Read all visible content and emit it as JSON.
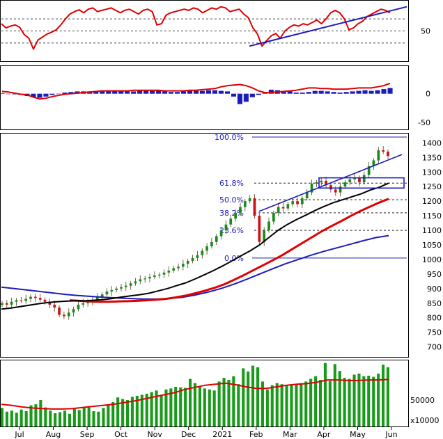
{
  "chart_data": [
    {
      "type": "line",
      "panel": "rsi",
      "yticks": [
        50
      ],
      "reference_levels": [
        30,
        50,
        70
      ],
      "series": [
        {
          "color": "#e00000",
          "values": [
            62,
            55,
            58,
            60,
            56,
            44,
            38,
            20,
            35,
            40,
            45,
            48,
            52,
            60,
            70,
            78,
            82,
            85,
            80,
            86,
            88,
            82,
            84,
            86,
            88,
            84,
            80,
            84,
            86,
            82,
            78,
            84,
            86,
            82,
            60,
            62,
            76,
            80,
            82,
            84,
            86,
            84,
            88,
            86,
            80,
            84,
            88,
            86,
            90,
            88,
            82,
            84,
            86,
            78,
            72,
            55,
            45,
            25,
            34,
            42,
            46,
            38,
            50,
            56,
            60,
            58,
            62,
            60,
            64,
            68,
            62,
            70,
            80,
            84,
            80,
            70,
            52,
            55,
            62,
            66,
            74,
            78,
            82,
            86,
            84,
            80
          ]
        },
        {
          "color": "#1c1cb8",
          "values": [
            25,
            90
          ]
        }
      ]
    },
    {
      "type": "bar",
      "panel": "macd",
      "yticks": [
        0,
        -50
      ],
      "series": [
        {
          "color": "#e00000",
          "values": [
            4,
            3,
            1,
            -1,
            -2,
            -6,
            -9,
            -8,
            -5,
            -3,
            -1,
            0,
            1,
            2,
            3,
            4,
            5,
            5,
            5,
            5,
            5,
            6,
            6,
            6,
            6,
            6,
            5,
            5,
            5,
            5,
            6,
            6,
            7,
            8,
            9,
            12,
            14,
            15,
            16,
            14,
            10,
            5,
            2,
            2,
            3,
            4,
            5,
            6,
            8,
            10,
            10,
            9,
            9,
            8,
            8,
            8,
            9,
            10,
            10,
            10,
            12,
            14,
            18
          ]
        },
        {
          "color": "#1c1cb8",
          "values": [
            1,
            0,
            -1,
            -2,
            -4,
            -6,
            -7,
            -5,
            -2,
            0,
            2,
            3,
            4,
            4,
            4,
            5,
            5,
            5,
            4,
            4,
            4,
            4,
            5,
            5,
            5,
            6,
            4,
            3,
            3,
            4,
            5,
            5,
            5,
            6,
            6,
            5,
            4,
            -5,
            -18,
            -14,
            -6,
            -2,
            3,
            7,
            6,
            5,
            4,
            2,
            2,
            3,
            5,
            5,
            4,
            3,
            2,
            3,
            4,
            5,
            6,
            5,
            6,
            8,
            10
          ]
        }
      ]
    },
    {
      "type": "candlestick",
      "panel": "price",
      "yticks": [
        700,
        750,
        800,
        850,
        900,
        950,
        1000,
        1050,
        1100,
        1150,
        1200,
        1250,
        1300,
        1350,
        1400
      ],
      "ylim": [
        680,
        1420
      ],
      "xlabels": [
        "Jul",
        "Aug",
        "Sep",
        "Oct",
        "Nov",
        "Dec",
        "2021",
        "Feb",
        "Mar",
        "Apr",
        "May",
        "Jun"
      ],
      "fibonacci": [
        {
          "label": "100.0%",
          "value": 1420
        },
        {
          "label": "61.8%",
          "value": 1262
        },
        {
          "label": "50.0%",
          "value": 1205
        },
        {
          "label": "38.2%",
          "value": 1160
        },
        {
          "label": "23.6%",
          "value": 1100
        },
        {
          "label": "0.0%",
          "value": 1005
        }
      ],
      "close": [
        850,
        845,
        855,
        860,
        858,
        865,
        872,
        868,
        862,
        855,
        845,
        835,
        810,
        805,
        818,
        830,
        845,
        850,
        856,
        862,
        870,
        880,
        890,
        895,
        900,
        905,
        910,
        918,
        925,
        932,
        935,
        940,
        945,
        948,
        955,
        962,
        970,
        975,
        985,
        995,
        1005,
        1015,
        1030,
        1045,
        1060,
        1080,
        1100,
        1120,
        1140,
        1160,
        1180,
        1200,
        1210,
        1150,
        1060,
        1100,
        1130,
        1160,
        1180,
        1175,
        1190,
        1200,
        1190,
        1210,
        1230,
        1260,
        1265,
        1270,
        1255,
        1240,
        1230,
        1250,
        1265,
        1275,
        1280,
        1265,
        1290,
        1320,
        1340,
        1375,
        1370,
        1355
      ],
      "series": [
        {
          "color": "#000000",
          "values": [
            830,
            833,
            838,
            843,
            848,
            852,
            855,
            857,
            858,
            858,
            860,
            862,
            866,
            871,
            875,
            879,
            884,
            892,
            900,
            910,
            920,
            933,
            947,
            962,
            978,
            995,
            1013,
            1030,
            1050,
            1075,
            1100,
            1120,
            1137,
            1152,
            1168,
            1182,
            1195,
            1205,
            1215,
            1225,
            1238,
            1248,
            1262
          ]
        },
        {
          "color": "#e00000",
          "values": [
            860,
            858,
            856,
            855,
            855,
            856,
            857,
            858,
            860,
            862,
            865,
            870,
            876,
            884,
            893,
            903,
            915,
            930,
            946,
            963,
            980,
            997,
            1015,
            1035,
            1055,
            1075,
            1095,
            1113,
            1130,
            1148,
            1165,
            1180,
            1195,
            1208
          ]
        },
        {
          "color": "#1c1cb8",
          "values": [
            905,
            900,
            895,
            890,
            885,
            880,
            876,
            873,
            870,
            868,
            866,
            864,
            864,
            866,
            870,
            878,
            888,
            900,
            915,
            932,
            950,
            968,
            985,
            1000,
            1015,
            1028,
            1040,
            1052,
            1064,
            1075,
            1082
          ]
        }
      ],
      "trend_lines": [
        {
          "color": "#1c1cb8",
          "values": [
            1165,
            1360
          ]
        },
        {
          "color": "#1c1cb8",
          "values": [
            1255,
            1280
          ]
        }
      ]
    },
    {
      "type": "bar",
      "panel": "volume",
      "yticks": [
        50000
      ],
      "unit_label": "x10000",
      "values": [
        35000,
        28000,
        30000,
        26000,
        32000,
        29000,
        40000,
        42000,
        50000,
        36000,
        30000,
        25000,
        27000,
        30000,
        24000,
        33000,
        31000,
        37000,
        36000,
        29000,
        28000,
        35000,
        42000,
        46000,
        55000,
        52000,
        50000,
        56000,
        58000,
        60000,
        62000,
        65000,
        68000,
        60000,
        70000,
        72000,
        75000,
        74000,
        73000,
        90000,
        82000,
        76000,
        72000,
        70000,
        68000,
        85000,
        92000,
        88000,
        95000,
        80000,
        110000,
        104000,
        115000,
        112000,
        85000,
        70000,
        78000,
        82000,
        80000,
        79000,
        78000,
        80000,
        82000,
        85000,
        90000,
        95000,
        88000,
        120000,
        86000,
        118000,
        105000,
        92000,
        90000,
        98000,
        100000,
        95000,
        96000,
        94000,
        100000,
        117000,
        112000
      ],
      "series": [
        {
          "color": "#e00000",
          "values": [
            42000,
            40000,
            37000,
            35000,
            34000,
            33000,
            33000,
            34000,
            36000,
            38000,
            40000,
            42000,
            45000,
            48000,
            52000,
            56000,
            60000,
            64000,
            70000,
            74000,
            78000,
            80000,
            82000,
            79000,
            75000,
            72000,
            72000,
            75000,
            78000,
            80000,
            81000,
            84000,
            88000,
            88000,
            87000,
            87000,
            88000,
            88000,
            89000
          ]
        }
      ]
    }
  ]
}
